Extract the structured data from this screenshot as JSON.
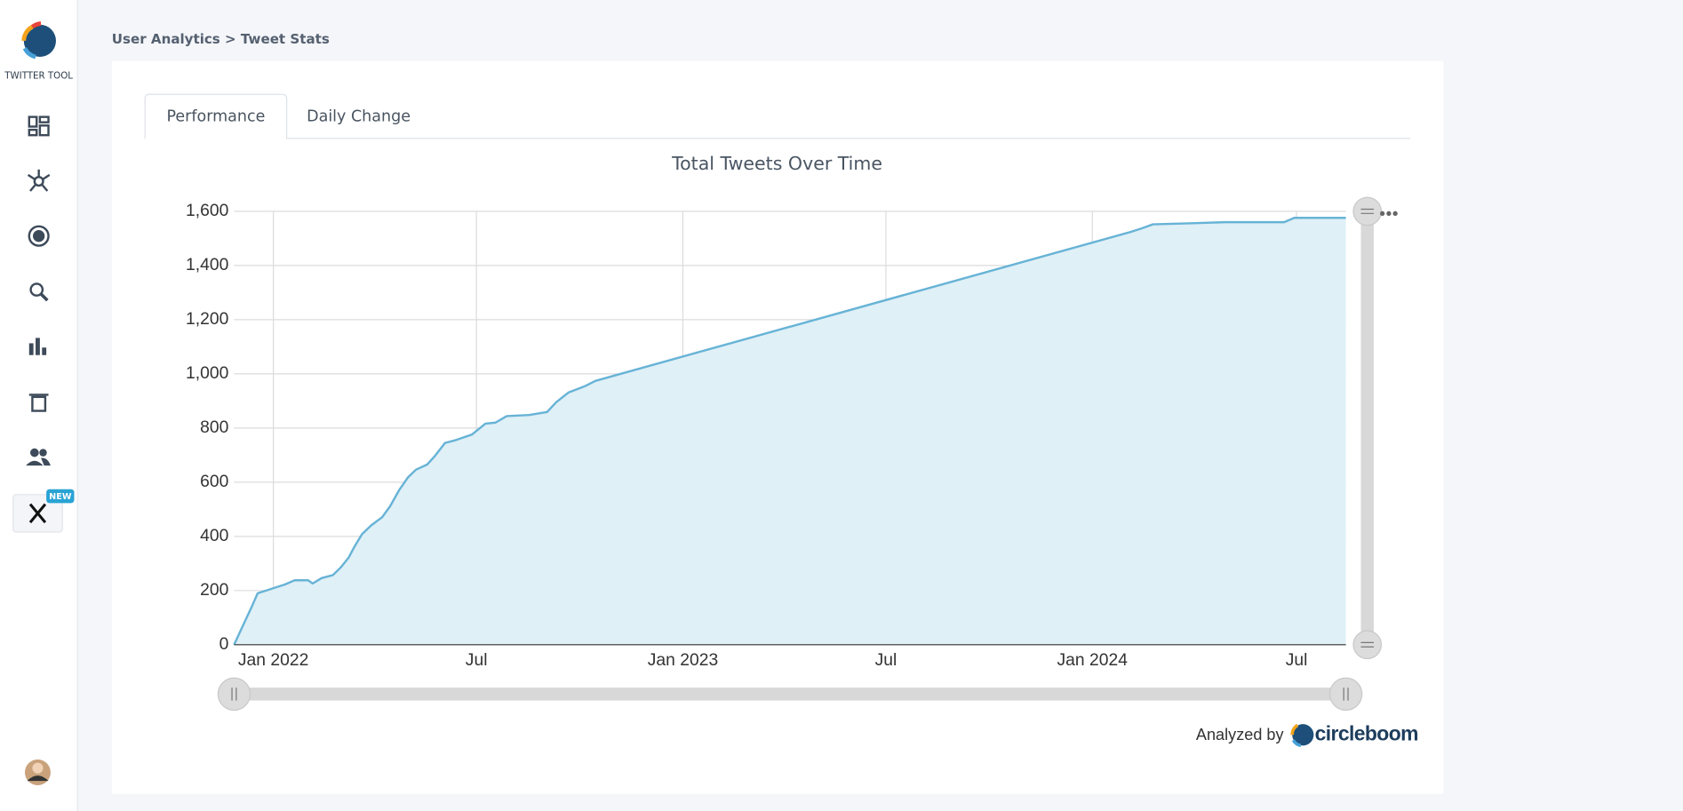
{
  "sidebar": {
    "brand": "TWITTER TOOL",
    "badge": "NEW"
  },
  "breadcrumb": "User Analytics > Tweet Stats",
  "tabs": [
    "Performance",
    "Daily Change"
  ],
  "chart_data": {
    "type": "area",
    "title": "Total Tweets Over Time",
    "x": [
      "2021-11-27",
      "2021-12-04",
      "2021-12-13",
      "2021-12-18",
      "2021-12-27",
      "2022-01-02",
      "2022-01-11",
      "2022-01-20",
      "2022-02-01",
      "2022-02-05",
      "2022-02-13",
      "2022-02-23",
      "2022-03-02",
      "2022-03-09",
      "2022-03-14",
      "2022-03-21",
      "2022-03-29",
      "2022-04-08",
      "2022-04-15",
      "2022-04-23",
      "2022-05-01",
      "2022-05-08",
      "2022-05-18",
      "2022-05-25",
      "2022-06-03",
      "2022-06-13",
      "2022-06-27",
      "2022-07-09",
      "2022-07-18",
      "2022-07-28",
      "2022-08-17",
      "2022-09-02",
      "2022-09-10",
      "2022-09-21",
      "2022-10-06",
      "2022-10-15",
      "2024-02-05",
      "2024-02-14",
      "2024-02-24",
      "2024-03-30",
      "2024-04-28",
      "2024-06-20",
      "2024-06-29",
      "2024-08-14"
    ],
    "series": [
      {
        "name": "Total Tweets",
        "color": "#67b3d6",
        "values": [
          0,
          63,
          143,
          190,
          202,
          210,
          222,
          238,
          238,
          226,
          246,
          257,
          285,
          321,
          360,
          408,
          440,
          471,
          511,
          570,
          618,
          646,
          665,
          697,
          745,
          756,
          776,
          816,
          820,
          844,
          848,
          859,
          895,
          931,
          955,
          974,
          1525,
          1537,
          1552,
          1556,
          1560,
          1560,
          1576,
          1576
        ]
      }
    ],
    "xlim": [
      "2021-11-27",
      "2024-08-14"
    ],
    "xticks": [
      {
        "value": "2022-01-01",
        "label": "Jan 2022"
      },
      {
        "value": "2022-07-01",
        "label": "Jul"
      },
      {
        "value": "2023-01-01",
        "label": "Jan 2023"
      },
      {
        "value": "2023-07-01",
        "label": "Jul"
      },
      {
        "value": "2024-01-01",
        "label": "Jan 2024"
      },
      {
        "value": "2024-07-01",
        "label": "Jul"
      }
    ],
    "ylim": [
      0,
      1600
    ],
    "yticks": [
      0,
      200,
      400,
      600,
      800,
      {
        "value": 1000,
        "label": "1,000"
      },
      {
        "value": 1200,
        "label": "1,200"
      },
      {
        "value": 1400,
        "label": "1,400"
      },
      {
        "value": 1600,
        "label": "1,600"
      }
    ],
    "grid": true,
    "fill": "#dff0f7"
  },
  "footer": {
    "credit": "Analyzed by",
    "brand": "circleboom"
  }
}
